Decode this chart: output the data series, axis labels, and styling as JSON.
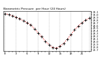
{
  "title": "Barometric Pressure  per Hour (24 Hours)",
  "hours": [
    0,
    1,
    2,
    3,
    4,
    5,
    6,
    7,
    8,
    9,
    10,
    11,
    12,
    13,
    14,
    15,
    16,
    17,
    18,
    19,
    20,
    21,
    22,
    23
  ],
  "pressure": [
    30.04,
    30.01,
    29.97,
    29.91,
    29.85,
    29.78,
    29.7,
    29.62,
    29.48,
    29.33,
    29.18,
    29.02,
    28.88,
    28.78,
    28.76,
    28.82,
    28.94,
    29.09,
    29.26,
    29.44,
    29.58,
    29.7,
    29.8,
    29.88
  ],
  "line_color": "#dd0000",
  "marker_color": "#000000",
  "bg_color": "#ffffff",
  "grid_color": "#999999",
  "ylim_min": 28.65,
  "ylim_max": 30.15,
  "ytick_values": [
    28.7,
    28.8,
    28.9,
    29.0,
    29.1,
    29.2,
    29.3,
    29.4,
    29.5,
    29.6,
    29.7,
    29.8,
    29.9,
    30.0,
    30.1
  ],
  "ytick_labels": [
    "28.7",
    "28.8",
    "28.9",
    "29.0",
    "29.1",
    "29.2",
    "29.3",
    "29.4",
    "29.5",
    "29.6",
    "29.7",
    "29.8",
    "29.9",
    "30.0",
    "30.1"
  ],
  "vgrid_hours": [
    0,
    3,
    6,
    9,
    12,
    15,
    18,
    21,
    23
  ],
  "xtick_every": 1
}
